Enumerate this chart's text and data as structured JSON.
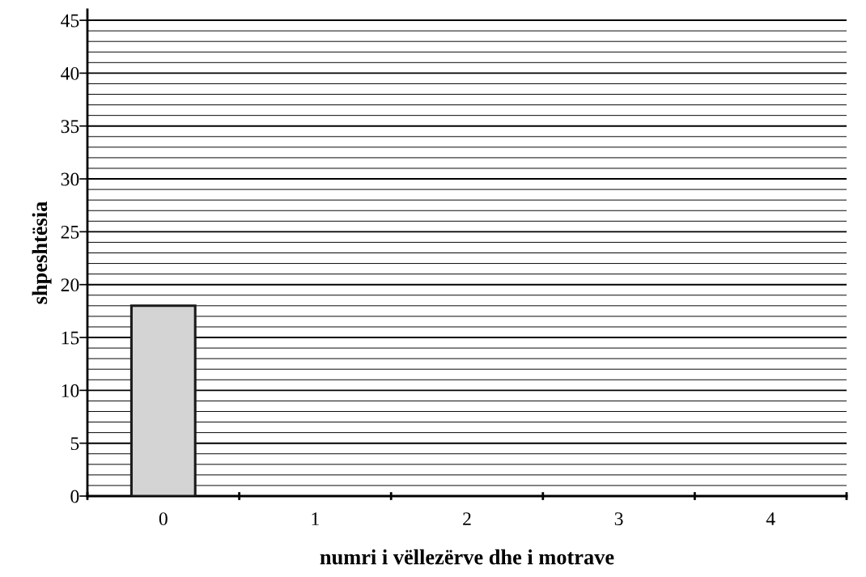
{
  "chart_data": {
    "type": "bar",
    "xlabel": "numri i vëllezërve dhe i motrave",
    "ylabel": "shpeshtësia",
    "categories": [
      "0",
      "1",
      "2",
      "3",
      "4"
    ],
    "values": [
      18,
      null,
      null,
      null,
      null
    ],
    "color": "#d4d4d4",
    "ylim": [
      0,
      46
    ],
    "yticks": [
      0,
      {
        "value": 1,
        "label": null
      },
      {
        "value": 2,
        "label": null
      },
      {
        "value": 3,
        "label": null
      },
      {
        "value": 4,
        "label": null
      },
      5,
      {
        "value": 6,
        "label": null
      },
      {
        "value": 7,
        "label": null
      },
      {
        "value": 8,
        "label": null
      },
      {
        "value": 9,
        "label": null
      },
      10,
      {
        "value": 11,
        "label": null
      },
      {
        "value": 12,
        "label": null
      },
      {
        "value": 13,
        "label": null
      },
      {
        "value": 14,
        "label": null
      },
      15,
      {
        "value": 16,
        "label": null
      },
      {
        "value": 17,
        "label": null
      },
      {
        "value": 18,
        "label": null
      },
      {
        "value": 19,
        "label": null
      },
      20,
      {
        "value": 21,
        "label": null
      },
      {
        "value": 22,
        "label": null
      },
      {
        "value": 23,
        "label": null
      },
      {
        "value": 24,
        "label": null
      },
      25,
      {
        "value": 26,
        "label": null
      },
      {
        "value": 27,
        "label": null
      },
      {
        "value": 28,
        "label": null
      },
      {
        "value": 29,
        "label": null
      },
      30,
      {
        "value": 31,
        "label": null
      },
      {
        "value": 32,
        "label": null
      },
      {
        "value": 33,
        "label": null
      },
      {
        "value": 34,
        "label": null
      },
      35,
      {
        "value": 36,
        "label": null
      },
      {
        "value": 37,
        "label": null
      },
      {
        "value": 38,
        "label": null
      },
      {
        "value": 39,
        "label": null
      },
      40,
      {
        "value": 41,
        "label": null
      },
      {
        "value": 42,
        "label": null
      },
      {
        "value": 43,
        "label": null
      },
      {
        "value": 44,
        "label": null
      },
      45
    ],
    "grid": "y"
  }
}
